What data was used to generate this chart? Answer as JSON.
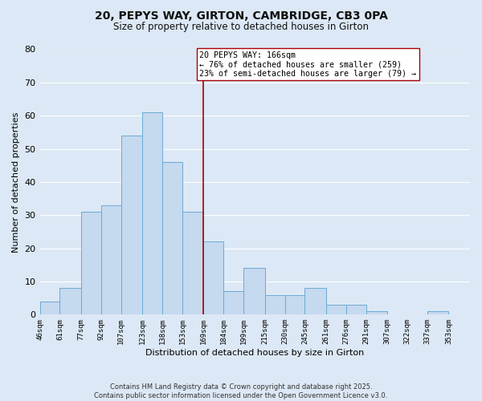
{
  "title1": "20, PEPYS WAY, GIRTON, CAMBRIDGE, CB3 0PA",
  "title2": "Size of property relative to detached houses in Girton",
  "xlabel": "Distribution of detached houses by size in Girton",
  "ylabel": "Number of detached properties",
  "bar_left_edges": [
    46,
    61,
    77,
    92,
    107,
    123,
    138,
    153,
    169,
    184,
    199,
    215,
    230,
    245,
    261,
    276,
    291,
    307,
    322,
    337
  ],
  "bar_heights": [
    4,
    8,
    31,
    33,
    54,
    61,
    46,
    31,
    22,
    7,
    14,
    6,
    6,
    8,
    3,
    3,
    1,
    0,
    0,
    1
  ],
  "bar_widths": [
    15,
    16,
    15,
    15,
    16,
    15,
    15,
    16,
    15,
    15,
    16,
    15,
    15,
    16,
    15,
    15,
    16,
    15,
    15,
    16
  ],
  "tick_labels": [
    "46sqm",
    "61sqm",
    "77sqm",
    "92sqm",
    "107sqm",
    "123sqm",
    "138sqm",
    "153sqm",
    "169sqm",
    "184sqm",
    "199sqm",
    "215sqm",
    "230sqm",
    "245sqm",
    "261sqm",
    "276sqm",
    "291sqm",
    "307sqm",
    "322sqm",
    "337sqm",
    "353sqm"
  ],
  "tick_positions": [
    46,
    61,
    77,
    92,
    107,
    123,
    138,
    153,
    169,
    184,
    199,
    215,
    230,
    245,
    261,
    276,
    291,
    307,
    322,
    337,
    353
  ],
  "bar_color": "#c5d9ef",
  "bar_edge_color": "#6aaad4",
  "vline_x": 169,
  "vline_color": "#aa0000",
  "annotation_line1": "20 PEPYS WAY: 166sqm",
  "annotation_line2": "← 76% of detached houses are smaller (259)",
  "annotation_line3": "23% of semi-detached houses are larger (79) →",
  "annotation_box_color": "#ffffff",
  "annotation_box_edge": "#aa0000",
  "ylim": [
    0,
    80
  ],
  "yticks": [
    0,
    10,
    20,
    30,
    40,
    50,
    60,
    70,
    80
  ],
  "xlim_left": 46,
  "xlim_right": 369,
  "background_color": "#dce8f5",
  "grid_color": "#ffffff",
  "footer1": "Contains HM Land Registry data © Crown copyright and database right 2025.",
  "footer2": "Contains public sector information licensed under the Open Government Licence v3.0.",
  "figsize": [
    6.0,
    5.0
  ],
  "dpi": 100
}
